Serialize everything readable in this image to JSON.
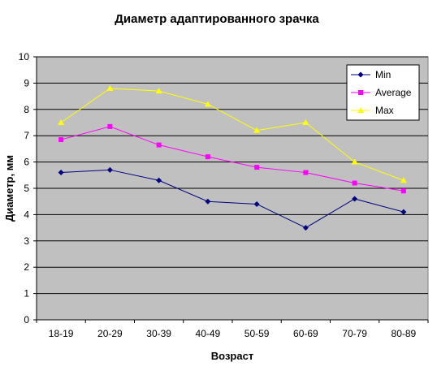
{
  "chart_data": {
    "type": "line",
    "title": "Диаметр адаптированного зрачка",
    "xlabel": "Возраст",
    "ylabel": "Диаметр, мм",
    "categories": [
      "18-19",
      "20-29",
      "30-39",
      "40-49",
      "50-59",
      "60-69",
      "70-79",
      "80-89"
    ],
    "ylim": [
      0,
      10
    ],
    "yticks": [
      "0",
      "1",
      "2",
      "3",
      "4",
      "5",
      "6",
      "7",
      "8",
      "9",
      "10"
    ],
    "grid": true,
    "legend_position": "top-right",
    "plot_background": "#c0c0c0",
    "series": [
      {
        "name": "Min",
        "color": "#000080",
        "marker": "diamond",
        "values": [
          5.6,
          5.7,
          5.3,
          4.5,
          4.4,
          3.5,
          4.6,
          4.1
        ]
      },
      {
        "name": "Average",
        "color": "#ff00ff",
        "marker": "square",
        "values": [
          6.85,
          7.35,
          6.65,
          6.2,
          5.8,
          5.6,
          5.2,
          4.9
        ]
      },
      {
        "name": "Max",
        "color": "#ffff00",
        "marker": "triangle",
        "values": [
          7.5,
          8.8,
          8.7,
          8.2,
          7.2,
          7.5,
          6.0,
          5.3
        ]
      }
    ]
  }
}
